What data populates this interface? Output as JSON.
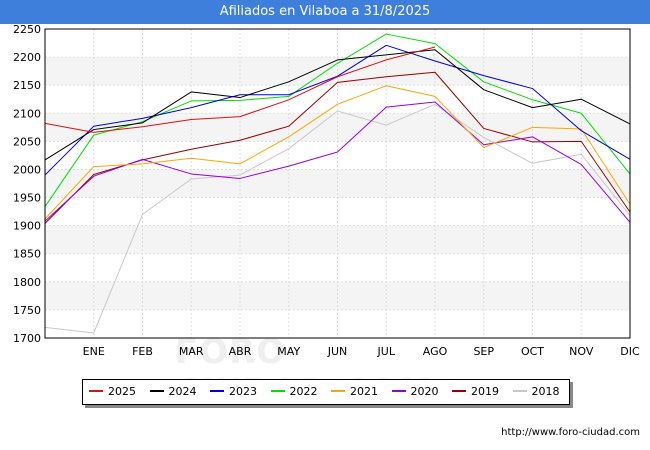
{
  "title": "Afiliados en Vilaboa a 31/8/2025",
  "source": "http://www.foro-ciudad.com",
  "watermark": "FORO-CIUDAD.COM",
  "chart_data": {
    "type": "line",
    "title": "Afiliados en Vilaboa a 31/8/2025",
    "xlabel": "",
    "ylabel": "",
    "categories": [
      "",
      "ENE",
      "FEB",
      "MAR",
      "ABR",
      "MAY",
      "JUN",
      "JUL",
      "AGO",
      "SEP",
      "OCT",
      "NOV",
      "DIC"
    ],
    "ylim": [
      1700,
      2250
    ],
    "yticks": [
      1700,
      1750,
      1800,
      1850,
      1900,
      1950,
      2000,
      2050,
      2100,
      2150,
      2200,
      2250
    ],
    "grid": true,
    "legend_position": "bottom",
    "series": [
      {
        "name": "2025",
        "color": "#dd1111",
        "values": [
          2082,
          2066,
          2076,
          2089,
          2094,
          2124,
          2165,
          2195,
          2218,
          null,
          null,
          null,
          null
        ]
      },
      {
        "name": "2024",
        "color": "#000000",
        "values": [
          2017,
          2071,
          2083,
          2138,
          2128,
          2156,
          2195,
          2204,
          2213,
          2142,
          2110,
          2125,
          2081
        ]
      },
      {
        "name": "2023",
        "color": "#0000dd",
        "values": [
          1990,
          2077,
          2091,
          2110,
          2133,
          2133,
          2166,
          2221,
          2193,
          2167,
          2144,
          2069,
          2018
        ]
      },
      {
        "name": "2022",
        "color": "#00dd00",
        "values": [
          1934,
          2061,
          2085,
          2122,
          2123,
          2130,
          2189,
          2241,
          2224,
          2156,
          2124,
          2100,
          1992
        ]
      },
      {
        "name": "2021",
        "color": "#ffa500",
        "values": [
          1912,
          2005,
          2010,
          2020,
          2010,
          2058,
          2116,
          2149,
          2130,
          2039,
          2075,
          2072,
          1938
        ]
      },
      {
        "name": "2020",
        "color": "#9900dd",
        "values": [
          1908,
          1988,
          2018,
          1992,
          1984,
          2006,
          2031,
          2111,
          2120,
          2044,
          2058,
          2009,
          1906
        ]
      },
      {
        "name": "2019",
        "color": "#990000",
        "values": [
          1904,
          1991,
          2017,
          2036,
          2052,
          2077,
          2155,
          2165,
          2173,
          2073,
          2049,
          2050,
          1924
        ]
      },
      {
        "name": "2018",
        "color": "#c8c8c8",
        "values": [
          1719,
          1709,
          1920,
          1983,
          1990,
          2037,
          2104,
          2079,
          2116,
          2057,
          2011,
          2027,
          1918
        ]
      }
    ]
  }
}
